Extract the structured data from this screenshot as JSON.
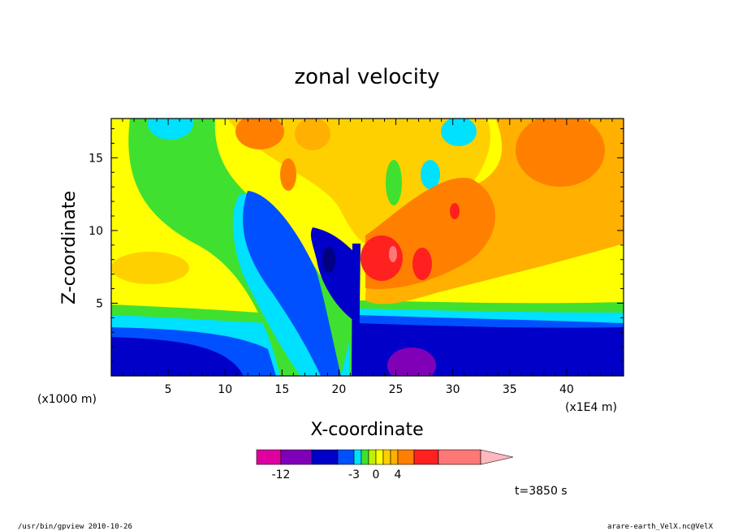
{
  "chart_data": {
    "type": "heatmap",
    "title": "zonal velocity",
    "xlabel": "X-coordinate",
    "ylabel": "Z-coordinate",
    "x_unit_left": "(x1000 m)",
    "x_unit_right": "(x1E4 m)",
    "xlim": [
      0,
      45
    ],
    "ylim": [
      0,
      17.7
    ],
    "x_ticks": [
      "5",
      "10",
      "15",
      "20",
      "25",
      "30",
      "35",
      "40"
    ],
    "x_tick_values": [
      5,
      10,
      15,
      20,
      25,
      30,
      35,
      40
    ],
    "y_ticks": [
      "5",
      "10",
      "15"
    ],
    "y_tick_values": [
      5,
      10,
      15
    ],
    "colorbar": {
      "bins": [
        "#e000a0",
        "#8000b8",
        "#0000c8",
        "#0050ff",
        "#00e0ff",
        "#40e030",
        "#c0f000",
        "#ffff00",
        "#ffd000",
        "#ffb000",
        "#ff8000",
        "#ff2020",
        "#ff7878",
        "#ffb8c0"
      ],
      "labels": [
        "-12",
        "-3",
        "0",
        "4"
      ],
      "label_bins": [
        1,
        4,
        7,
        10
      ]
    },
    "time_label": "t=3850 s"
  },
  "footer": {
    "left": "/usr/bin/gpview  2010-10-26",
    "right": "arare-earth_VelX.nc@VelX"
  }
}
